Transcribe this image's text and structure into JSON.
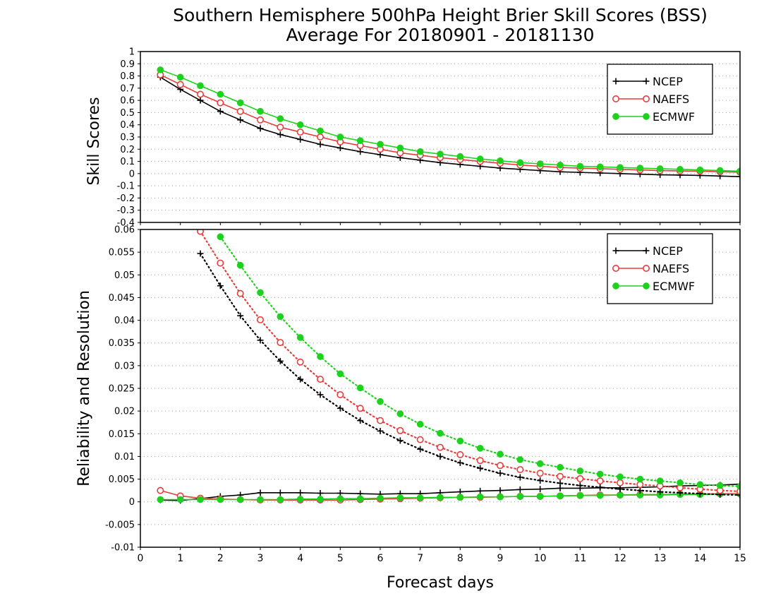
{
  "title": "Southern Hemisphere 500hPa Height Brier Skill Scores (BSS)",
  "subtitle": "Average For 20180901 - 20181130",
  "colors": {
    "NCEP": "#000000",
    "NAEFS": "#e83c3c",
    "ECMWF": "#1dd21d",
    "grid": "#a0a0a0"
  },
  "chart_data": [
    {
      "type": "line",
      "panel": "top",
      "ylabel": "Skill Scores",
      "xlim": [
        0,
        15
      ],
      "ylim": [
        -0.4,
        1
      ],
      "x": [
        0.5,
        1,
        1.5,
        2,
        2.5,
        3,
        3.5,
        4,
        4.5,
        5,
        5.5,
        6,
        6.5,
        7,
        7.5,
        8,
        8.5,
        9,
        9.5,
        10,
        10.5,
        11,
        11.5,
        12,
        12.5,
        13,
        13.5,
        14,
        14.5,
        15
      ],
      "yticks": [
        "-0.4",
        "-0.3",
        "-0.2",
        "-0.1",
        "0",
        "0.1",
        "0.2",
        "0.3",
        "0.4",
        "0.5",
        "0.6",
        "0.7",
        "0.8",
        "0.9",
        "1"
      ],
      "grid": true,
      "legend_position": "top-right",
      "series": [
        {
          "name": "NCEP",
          "marker": "plus",
          "style": "solid",
          "values": [
            0.79,
            0.69,
            0.6,
            0.51,
            0.44,
            0.37,
            0.32,
            0.28,
            0.24,
            0.21,
            0.18,
            0.155,
            0.13,
            0.11,
            0.09,
            0.075,
            0.06,
            0.045,
            0.035,
            0.025,
            0.015,
            0.01,
            0.005,
            0.0,
            -0.005,
            -0.01,
            -0.012,
            -0.015,
            -0.02,
            -0.025
          ]
        },
        {
          "name": "NAEFS",
          "marker": "open-circle",
          "style": "solid",
          "values": [
            0.81,
            0.73,
            0.65,
            0.58,
            0.51,
            0.44,
            0.38,
            0.34,
            0.3,
            0.26,
            0.23,
            0.2,
            0.17,
            0.15,
            0.13,
            0.115,
            0.1,
            0.085,
            0.07,
            0.06,
            0.05,
            0.045,
            0.04,
            0.035,
            0.03,
            0.025,
            0.022,
            0.02,
            0.015,
            0.012
          ]
        },
        {
          "name": "ECMWF",
          "marker": "filled-circle",
          "style": "solid",
          "values": [
            0.85,
            0.79,
            0.72,
            0.65,
            0.58,
            0.51,
            0.45,
            0.4,
            0.35,
            0.3,
            0.27,
            0.24,
            0.21,
            0.18,
            0.16,
            0.14,
            0.12,
            0.105,
            0.09,
            0.08,
            0.07,
            0.06,
            0.055,
            0.05,
            0.045,
            0.04,
            0.035,
            0.03,
            0.025,
            0.02
          ]
        }
      ]
    },
    {
      "type": "line",
      "panel": "bottom",
      "ylabel": "Reliability and Resolution",
      "xlabel": "Forecast days",
      "xlim": [
        0,
        15
      ],
      "ylim": [
        -0.01,
        0.06
      ],
      "x": [
        0.5,
        1,
        1.5,
        2,
        2.5,
        3,
        3.5,
        4,
        4.5,
        5,
        5.5,
        6,
        6.5,
        7,
        7.5,
        8,
        8.5,
        9,
        9.5,
        10,
        10.5,
        11,
        11.5,
        12,
        12.5,
        13,
        13.5,
        14,
        14.5,
        15
      ],
      "xticks": [
        "0",
        "1",
        "2",
        "3",
        "4",
        "5",
        "6",
        "7",
        "8",
        "9",
        "10",
        "11",
        "12",
        "13",
        "14",
        "15"
      ],
      "yticks": [
        "-0.01",
        "-0.005",
        "0",
        "0.005",
        "0.01",
        "0.015",
        "0.02",
        "0.025",
        "0.03",
        "0.035",
        "0.04",
        "0.045",
        "0.05",
        "0.055",
        "0.06"
      ],
      "grid": true,
      "legend_position": "top-right",
      "series": [
        {
          "name": "NCEP",
          "metric": "reliability",
          "marker": "plus",
          "style": "solid",
          "legend": true,
          "values": [
            0.0004,
            0.0003,
            0.0007,
            0.0012,
            0.0015,
            0.002,
            0.002,
            0.002,
            0.0019,
            0.0019,
            0.0018,
            0.0017,
            0.0018,
            0.0018,
            0.002,
            0.0022,
            0.0024,
            0.0025,
            0.0027,
            0.0028,
            0.003,
            0.003,
            0.0031,
            0.0031,
            0.0032,
            0.0033,
            0.0035,
            0.0036,
            0.0037,
            0.0039
          ]
        },
        {
          "name": "NAEFS",
          "metric": "reliability",
          "marker": "open-circle",
          "style": "solid",
          "legend": true,
          "values": [
            0.0025,
            0.0013,
            0.0008,
            0.0006,
            0.0005,
            0.0004,
            0.0004,
            0.0004,
            0.0004,
            0.0004,
            0.0005,
            0.0006,
            0.0007,
            0.0008,
            0.0009,
            0.001,
            0.001,
            0.0011,
            0.0012,
            0.0012,
            0.0013,
            0.0014,
            0.0015,
            0.0015,
            0.0016,
            0.0016,
            0.0017,
            0.0017,
            0.0018,
            0.0018
          ]
        },
        {
          "name": "ECMWF",
          "metric": "reliability",
          "marker": "filled-circle",
          "style": "solid",
          "legend": true,
          "values": [
            0.0005,
            0.0005,
            0.0005,
            0.0005,
            0.0005,
            0.0005,
            0.0005,
            0.0006,
            0.0006,
            0.0007,
            0.0007,
            0.0008,
            0.0009,
            0.0009,
            0.001,
            0.001,
            0.0011,
            0.0011,
            0.0012,
            0.0012,
            0.0013,
            0.0014,
            0.0014,
            0.0015,
            0.0015,
            0.0015,
            0.0016,
            0.0016,
            0.0017,
            0.0017
          ]
        },
        {
          "name": "NCEP",
          "metric": "resolution",
          "marker": "plus",
          "style": "dotted",
          "legend": false,
          "values": [
            null,
            null,
            0.0547,
            0.0476,
            0.041,
            0.0356,
            0.031,
            0.027,
            0.0236,
            0.0206,
            0.0179,
            0.0156,
            0.0135,
            0.0116,
            0.01,
            0.0086,
            0.0074,
            0.0063,
            0.0054,
            0.0047,
            0.0041,
            0.0036,
            0.0032,
            0.0028,
            0.0025,
            0.0022,
            0.002,
            0.0018,
            0.0016,
            0.0015
          ]
        },
        {
          "name": "NAEFS",
          "metric": "resolution",
          "marker": "open-circle",
          "style": "dotted",
          "legend": false,
          "values": [
            null,
            null,
            0.0596,
            0.0526,
            0.0459,
            0.0401,
            0.0351,
            0.0308,
            0.027,
            0.0236,
            0.0206,
            0.0179,
            0.0157,
            0.0137,
            0.012,
            0.0104,
            0.0091,
            0.008,
            0.0071,
            0.0063,
            0.0056,
            0.0051,
            0.0046,
            0.0042,
            0.0038,
            0.0035,
            0.0031,
            0.0028,
            0.0025,
            0.0023
          ]
        },
        {
          "name": "ECMWF",
          "metric": "resolution",
          "marker": "filled-circle",
          "style": "dotted",
          "legend": false,
          "values": [
            null,
            null,
            null,
            0.0584,
            0.0521,
            0.0461,
            0.0408,
            0.0362,
            0.032,
            0.0282,
            0.0251,
            0.0221,
            0.0194,
            0.0171,
            0.0151,
            0.0134,
            0.0118,
            0.0105,
            0.0093,
            0.0084,
            0.0076,
            0.0068,
            0.0061,
            0.0055,
            0.005,
            0.0046,
            0.0042,
            0.0038,
            0.0036,
            0.0034
          ]
        }
      ]
    }
  ]
}
